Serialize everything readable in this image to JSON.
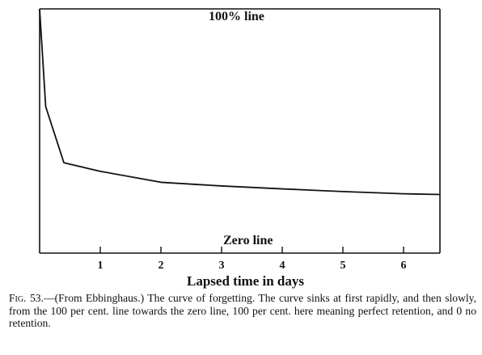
{
  "chart_data": {
    "type": "line",
    "title": "",
    "xlabel": "Lapsed time in days",
    "ylabel": "",
    "xlim": [
      0,
      6.6
    ],
    "ylim": [
      0,
      100
    ],
    "xticks": [
      "1",
      "2",
      "3",
      "4",
      "5",
      "6"
    ],
    "xtick_values": [
      1,
      2,
      3,
      4,
      5,
      6
    ],
    "series": [
      {
        "name": "",
        "x": [
          0,
          0.1,
          0.4,
          1.0,
          2.0,
          3.0,
          4.0,
          5.0,
          6.0,
          6.6
        ],
        "y": [
          100,
          60,
          37,
          33.5,
          29,
          27.5,
          26.3,
          25.2,
          24.3,
          24
        ]
      }
    ],
    "annotations": {
      "top_line": "100% line",
      "zero_line": "Zero line"
    },
    "grid": false
  },
  "caption": {
    "figure_number": "Fig. 53.",
    "text": "—(From Ebbinghaus.) The curve of forgetting. The curve sinks at first rapidly, and then slowly, from the 100 per cent. line towards the zero line, 100 per cent. here meaning perfect retention, and 0 no retention."
  }
}
